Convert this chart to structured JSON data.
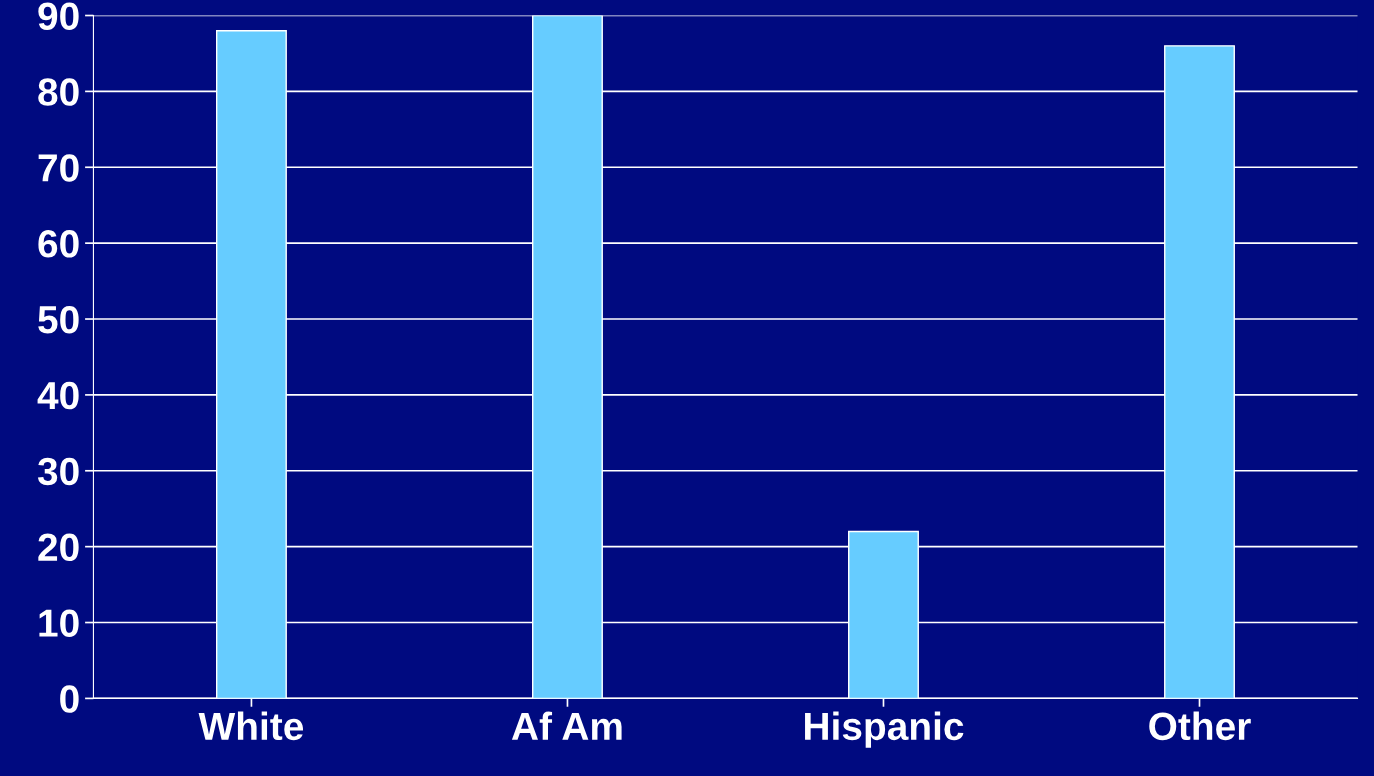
{
  "chart_data": {
    "type": "bar",
    "categories": [
      "White",
      "Af Am",
      "Hispanic",
      "Other"
    ],
    "values": [
      88,
      90,
      22,
      86
    ],
    "color": "#66ccff",
    "ylim": [
      0,
      90
    ],
    "yticks": [
      0,
      10,
      20,
      30,
      40,
      50,
      60,
      70,
      80,
      90
    ],
    "grid": "y"
  }
}
